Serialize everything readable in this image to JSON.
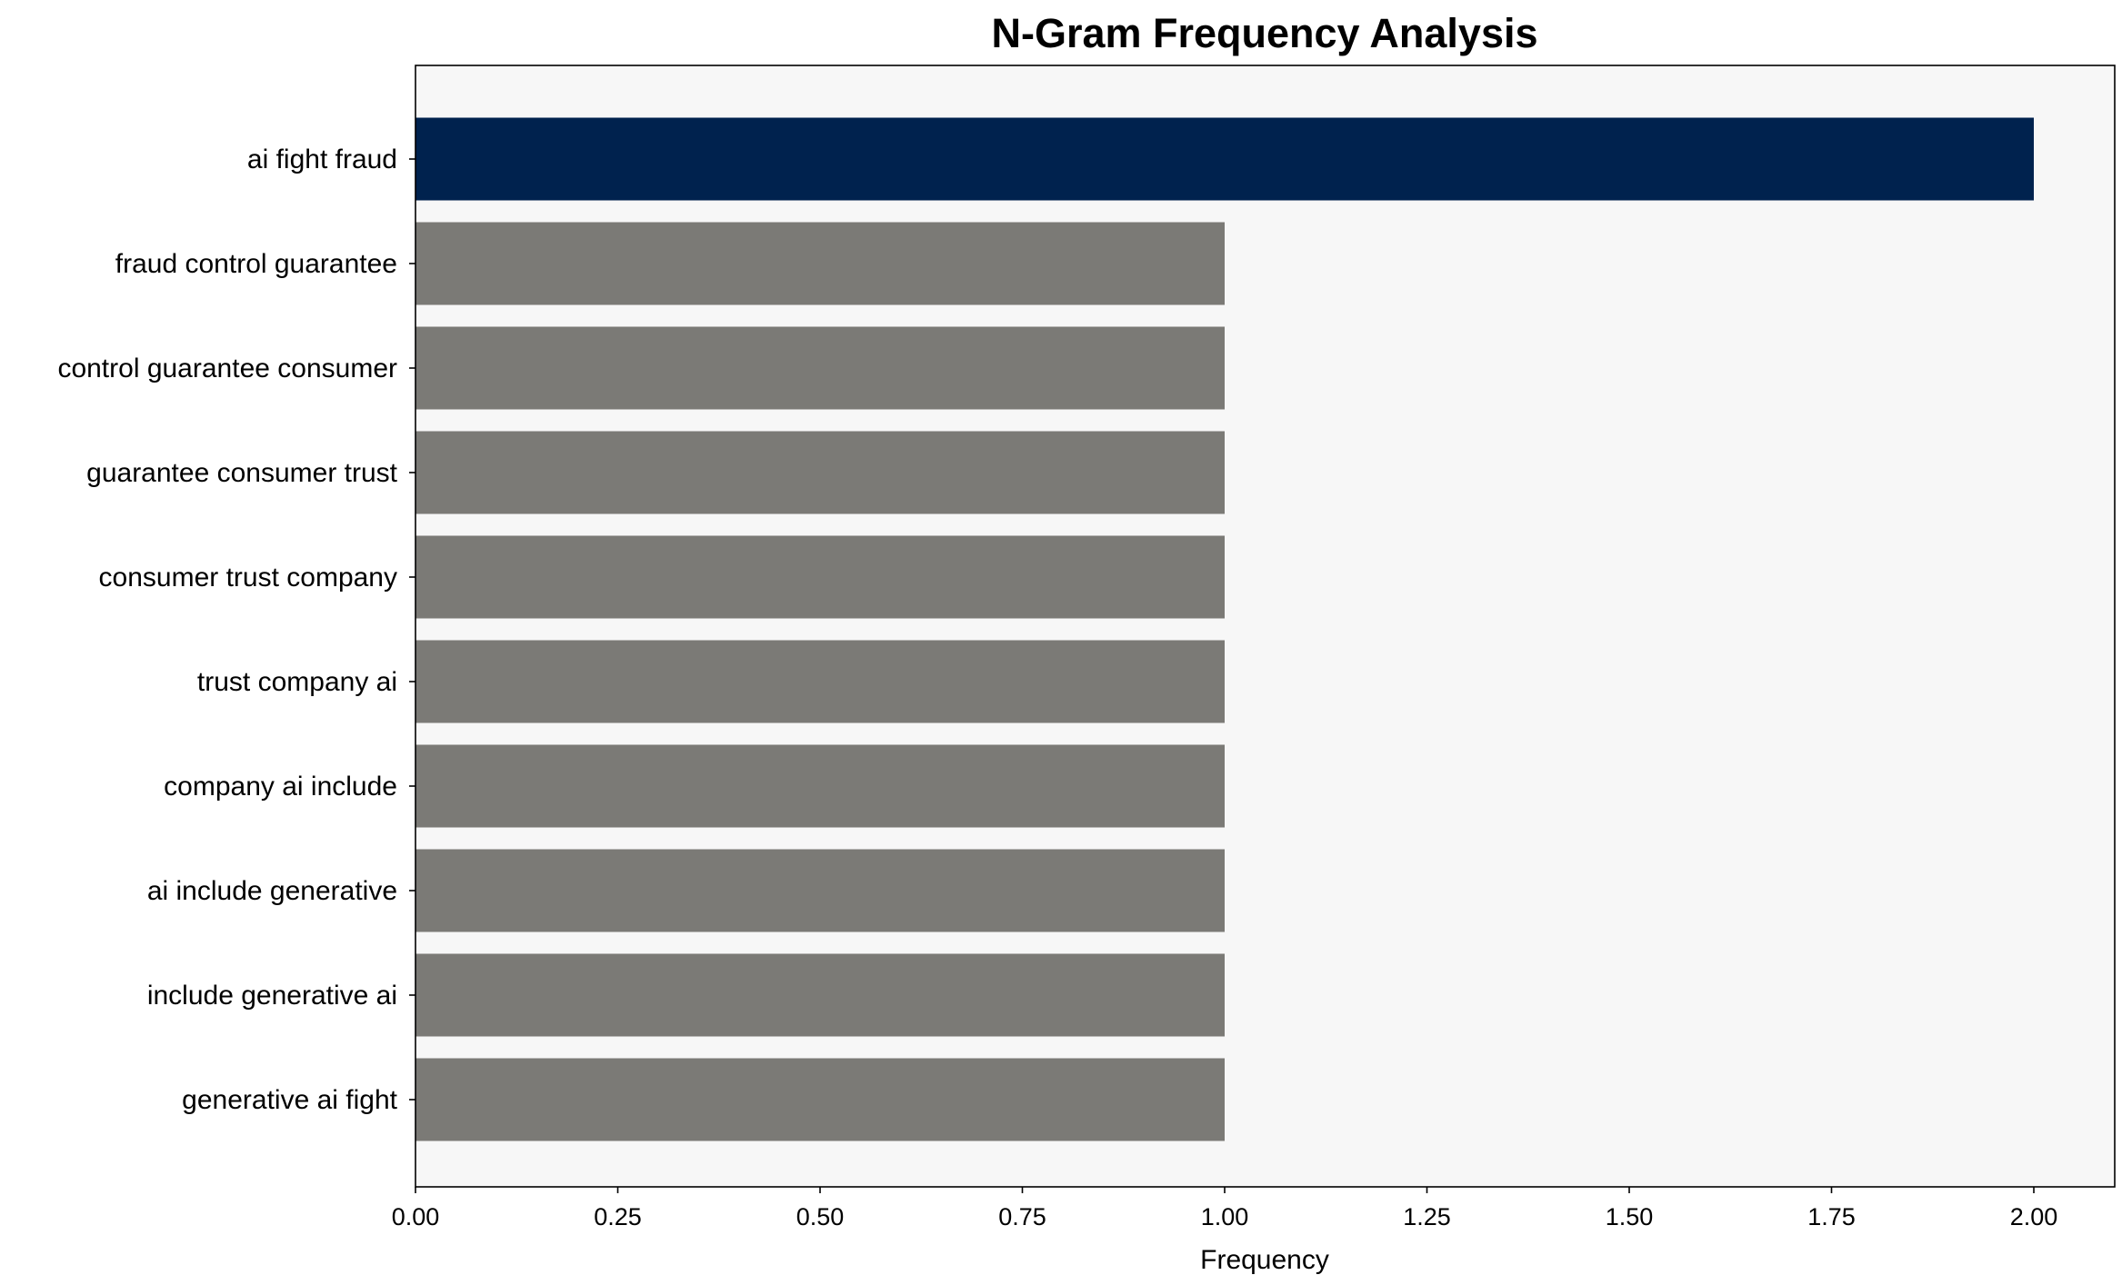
{
  "chart_data": {
    "type": "bar",
    "orientation": "horizontal",
    "title": "N-Gram Frequency Analysis",
    "xlabel": "Frequency",
    "ylabel": "",
    "xlim": [
      0,
      2.1
    ],
    "xticks": [
      "0.00",
      "0.25",
      "0.50",
      "0.75",
      "1.00",
      "1.25",
      "1.50",
      "1.75",
      "2.00"
    ],
    "categories": [
      "ai fight fraud",
      "fraud control guarantee",
      "control guarantee consumer",
      "guarantee consumer trust",
      "consumer trust company",
      "trust company ai",
      "company ai include",
      "ai include generative",
      "include generative ai",
      "generative ai fight"
    ],
    "values": [
      2,
      1,
      1,
      1,
      1,
      1,
      1,
      1,
      1,
      1
    ],
    "colors": {
      "highlight": "#00224e",
      "default": "#7b7a76",
      "background": "#f7f7f7"
    },
    "grid": false
  }
}
